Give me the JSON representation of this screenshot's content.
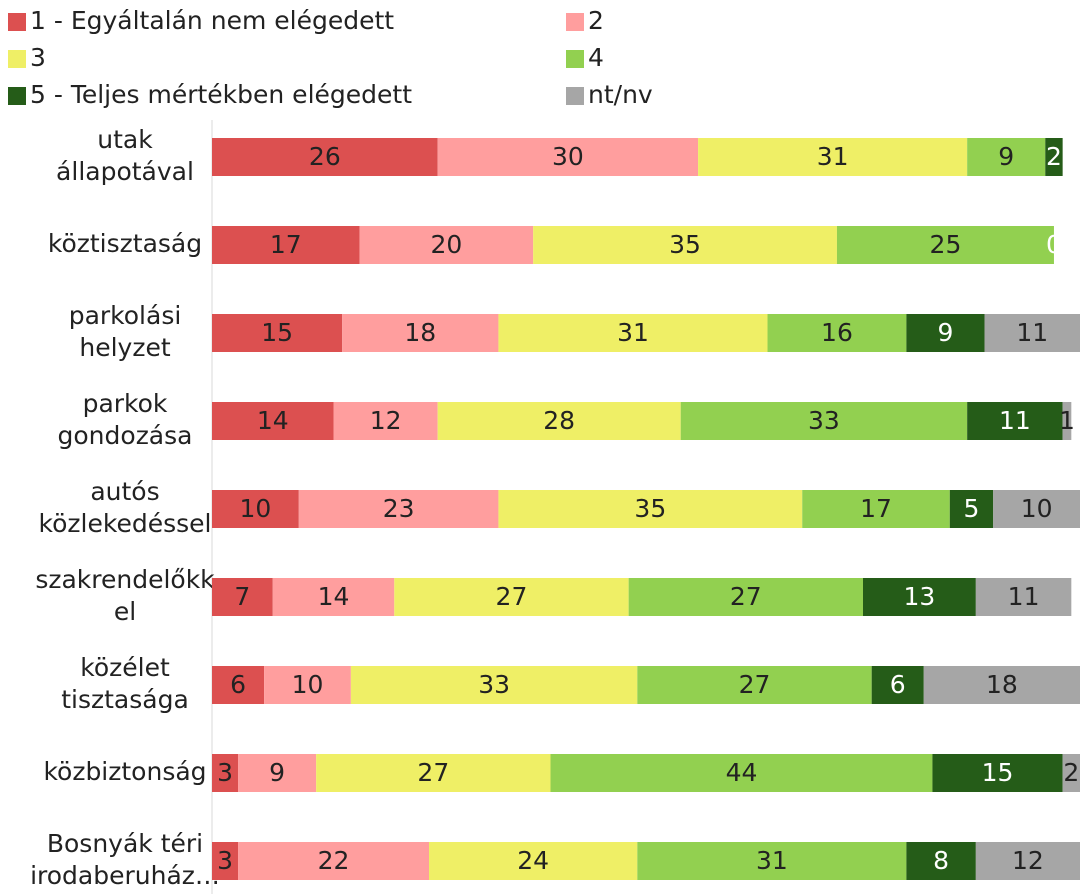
{
  "chart_data": {
    "type": "stacked_bar_horizontal",
    "categories": [
      "utak\nállapotával",
      "köztisztaság",
      "parkolási\nhelyzet",
      "parkok\ngondozása",
      "autós\nközlekedéssel",
      "szakrendelőkk\nel",
      "közélet\ntisztasága",
      "közbiztonság",
      "Bosnyák téri\nirodaberuház…"
    ],
    "xlim": [
      0,
      100
    ],
    "legend": "top",
    "series": [
      {
        "name": "1 - Egyáltalán nem elégedett",
        "color": "#dc5050",
        "values": [
          26,
          17,
          15,
          14,
          10,
          7,
          6,
          3,
          3
        ]
      },
      {
        "name": "2",
        "color": "#ff9e9e",
        "values": [
          30,
          20,
          18,
          12,
          23,
          14,
          10,
          9,
          22
        ]
      },
      {
        "name": "3",
        "color": "#efef66",
        "values": [
          31,
          35,
          31,
          28,
          35,
          27,
          33,
          27,
          24
        ]
      },
      {
        "name": "4",
        "color": "#92d050",
        "values": [
          9,
          25,
          16,
          33,
          17,
          27,
          27,
          44,
          31
        ]
      },
      {
        "name": "5 - Teljes mértékben elégedett",
        "color": "#255c18",
        "values": [
          2,
          0,
          9,
          11,
          5,
          13,
          6,
          15,
          8
        ]
      },
      {
        "name": "nt/nv",
        "color": "#a6a6a6",
        "values": [
          null,
          null,
          11,
          1,
          10,
          11,
          18,
          2,
          12
        ]
      }
    ]
  }
}
